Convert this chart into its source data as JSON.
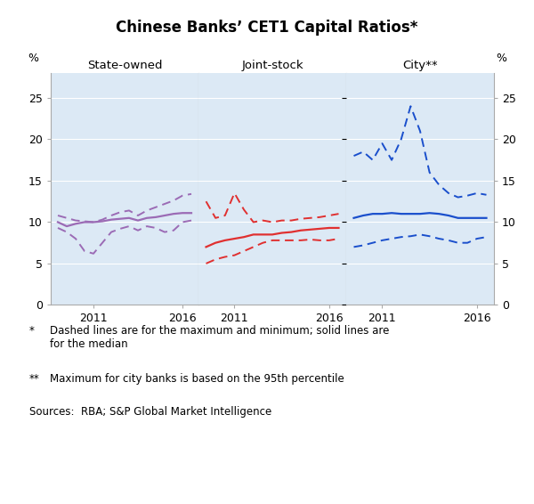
{
  "title": "Chinese Banks’ CET1 Capital Ratios*",
  "panel_titles": [
    "State-owned",
    "Joint-stock",
    "City**"
  ],
  "ylim": [
    0,
    28
  ],
  "yticks": [
    0,
    5,
    10,
    15,
    20,
    25
  ],
  "background_color": "#dce9f5",
  "footnote1_bullet": "*",
  "footnote1_text": "Dashed lines are for the maximum and minimum; solid lines are\nfor the median",
  "footnote2_bullet": "**",
  "footnote2_text": "Maximum for city banks is based on the 95th percentile",
  "footnote3_text": "Sources:  RBA; S&P Global Market Intelligence",
  "state_owned": {
    "color": "#9B6BB5",
    "years": [
      2009.0,
      2009.5,
      2010.0,
      2010.5,
      2011.0,
      2011.5,
      2012.0,
      2012.5,
      2013.0,
      2013.5,
      2014.0,
      2014.5,
      2015.0,
      2015.5,
      2016.0,
      2016.5
    ],
    "median": [
      10.0,
      9.5,
      9.8,
      10.0,
      10.0,
      10.1,
      10.3,
      10.4,
      10.5,
      10.2,
      10.5,
      10.6,
      10.8,
      11.0,
      11.1,
      11.1
    ],
    "max": [
      10.8,
      10.5,
      10.2,
      10.1,
      10.0,
      10.3,
      10.8,
      11.2,
      11.4,
      10.8,
      11.4,
      11.8,
      12.2,
      12.6,
      13.2,
      13.4
    ],
    "min": [
      9.3,
      8.8,
      8.0,
      6.5,
      6.2,
      7.5,
      8.8,
      9.2,
      9.5,
      9.0,
      9.5,
      9.3,
      8.8,
      9.0,
      10.0,
      10.2
    ]
  },
  "joint_stock": {
    "color": "#e03030",
    "years": [
      2009.5,
      2010.0,
      2010.5,
      2011.0,
      2011.5,
      2012.0,
      2012.5,
      2013.0,
      2013.5,
      2014.0,
      2014.5,
      2015.0,
      2015.5,
      2016.0,
      2016.5
    ],
    "median": [
      7.0,
      7.5,
      7.8,
      8.0,
      8.2,
      8.5,
      8.5,
      8.5,
      8.7,
      8.8,
      9.0,
      9.1,
      9.2,
      9.3,
      9.3
    ],
    "max": [
      12.5,
      10.5,
      10.8,
      13.5,
      11.5,
      10.0,
      10.2,
      10.0,
      10.2,
      10.2,
      10.4,
      10.5,
      10.6,
      10.8,
      11.0
    ],
    "min": [
      5.0,
      5.5,
      5.8,
      6.0,
      6.5,
      7.0,
      7.5,
      7.8,
      7.8,
      7.8,
      7.8,
      7.9,
      7.8,
      7.8,
      8.0
    ]
  },
  "city": {
    "color": "#1a4fcc",
    "years": [
      2009.5,
      2010.0,
      2010.5,
      2011.0,
      2011.5,
      2012.0,
      2012.5,
      2013.0,
      2013.5,
      2014.0,
      2014.5,
      2015.0,
      2015.5,
      2016.0,
      2016.5
    ],
    "median": [
      10.5,
      10.8,
      11.0,
      11.0,
      11.1,
      11.0,
      11.0,
      11.0,
      11.1,
      11.0,
      10.8,
      10.5,
      10.5,
      10.5,
      10.5
    ],
    "max": [
      18.0,
      18.5,
      17.5,
      19.5,
      17.5,
      20.0,
      24.0,
      21.0,
      16.0,
      14.5,
      13.5,
      13.0,
      13.2,
      13.5,
      13.3
    ],
    "min": [
      7.0,
      7.2,
      7.5,
      7.8,
      8.0,
      8.2,
      8.3,
      8.5,
      8.3,
      8.0,
      7.8,
      7.5,
      7.5,
      8.0,
      8.2
    ]
  }
}
